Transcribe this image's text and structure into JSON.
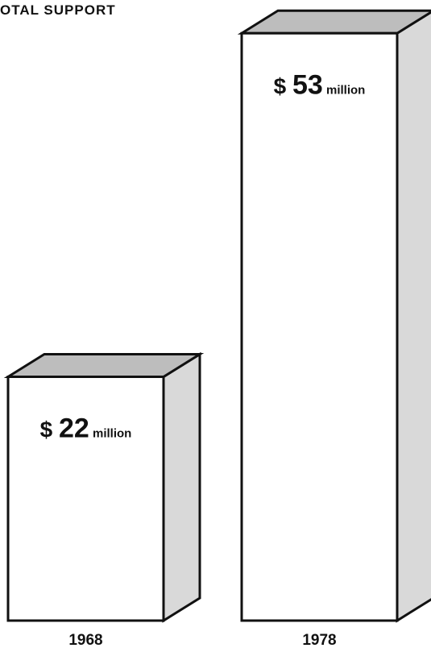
{
  "chart_data": {
    "type": "bar3d",
    "title": "OTAL SUPPORT",
    "categories": [
      "1968",
      "1978"
    ],
    "values": [
      22,
      53
    ],
    "value_labels": [
      "$ 22 million",
      "$ 53 million"
    ],
    "color": "#ffffff"
  }
}
